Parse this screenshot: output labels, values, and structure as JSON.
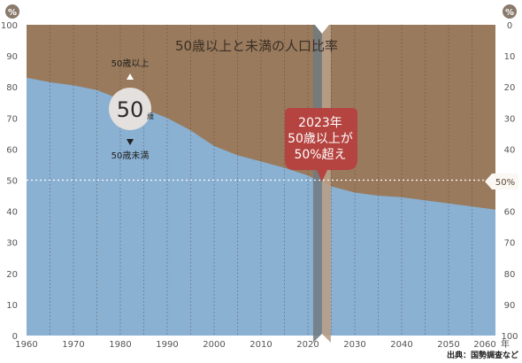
{
  "chart_data": {
    "type": "area",
    "title": "50歳以上と未満の人口比率",
    "left_unit": "%",
    "right_unit": "%",
    "x_unit": "年",
    "xlim": [
      1960,
      2060
    ],
    "ylim": [
      0,
      100
    ],
    "x_ticks": [
      1960,
      1970,
      1980,
      1990,
      2000,
      2010,
      2020,
      2030,
      2040,
      2050,
      2060
    ],
    "y_ticks_left": [
      0,
      10,
      20,
      30,
      40,
      50,
      60,
      70,
      80,
      90,
      100
    ],
    "y_ticks_right": [
      100,
      90,
      80,
      70,
      60,
      50,
      40,
      30,
      20,
      10,
      0
    ],
    "series": [
      {
        "name": "50歳未満",
        "color": "#8ab0d2",
        "x": [
          1960,
          1965,
          1970,
          1975,
          1980,
          1985,
          1990,
          1995,
          2000,
          2005,
          2010,
          2015,
          2020,
          2025,
          2030,
          2035,
          2040,
          2045,
          2050,
          2055,
          2060
        ],
        "values": [
          83,
          81.5,
          80.5,
          79,
          76,
          73,
          70,
          66,
          61,
          58,
          56,
          54,
          51.5,
          48,
          46,
          45,
          44.5,
          43.5,
          42.5,
          41.5,
          40.5
        ]
      },
      {
        "name": "50歳以上",
        "color": "#9a7a5c"
      }
    ],
    "annotations": {
      "legend_upper": "50歳以上",
      "legend_big": "50",
      "legend_big_suffix": "歳",
      "legend_lower": "50歳未満",
      "callout_year": 2023,
      "callout_lines": [
        "2023年",
        "50歳以上が",
        "50%超え"
      ],
      "reference_value": 50,
      "reference_label": "50%"
    },
    "grid": "vertical-dotted every 5 years",
    "source": "出典：国勢調査など"
  },
  "colors": {
    "below": "#8ab0d2",
    "above": "#9a7a5c",
    "callout": "#b5433f",
    "marker_dark": "#6f7a80",
    "marker_light": "#b89e86"
  }
}
